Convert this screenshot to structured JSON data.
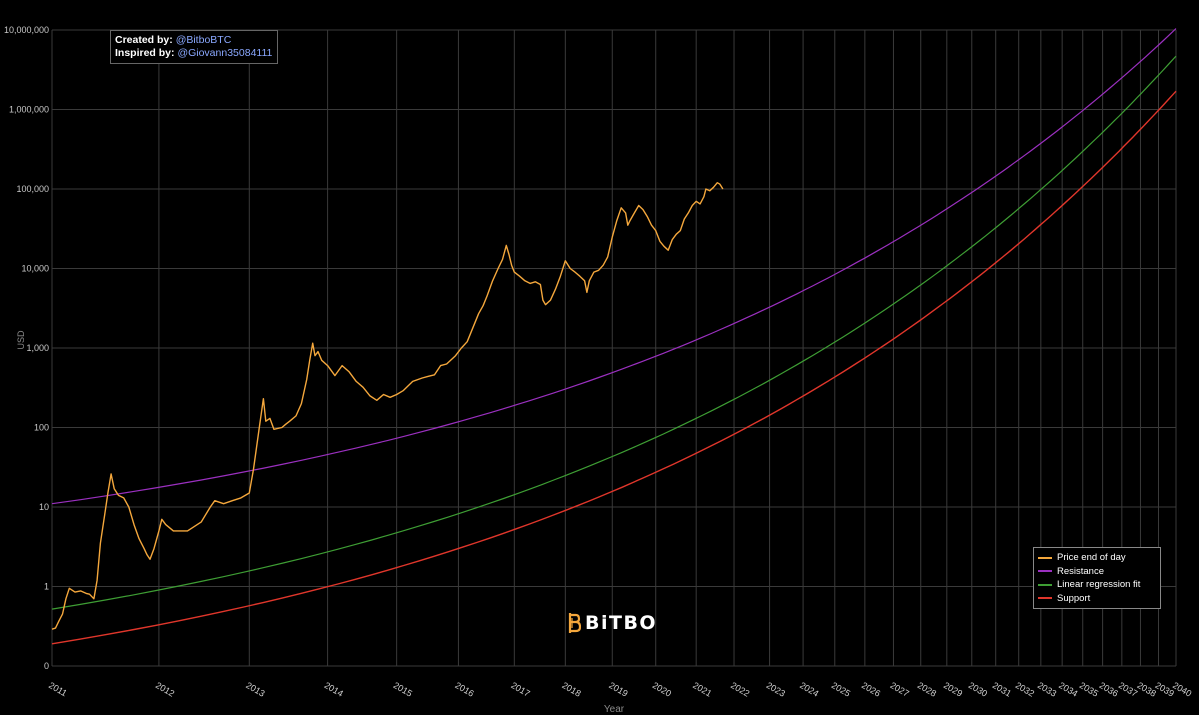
{
  "credits": {
    "created_label": "Created by:",
    "created_handle": "@BitboBTC",
    "inspired_label": "Inspired by:",
    "inspired_handle": "@Giovann35084111"
  },
  "brand": {
    "name": "BiTBO"
  },
  "colors": {
    "background": "#000000",
    "grid": "#3a3a3a",
    "price": "#f4a73c",
    "resistance": "#9b30c0",
    "regression": "#3e9e34",
    "support": "#e0362b",
    "logo": "#f4a73c"
  },
  "chart_data": {
    "type": "line",
    "title": "",
    "xlabel": "Year",
    "ylabel": "USD",
    "yscale": "log",
    "ylim": [
      0.1,
      10000000
    ],
    "xlim": [
      2011.0,
      2040.0
    ],
    "y_ticks": [
      {
        "value": 0.1,
        "label": "0"
      },
      {
        "value": 1,
        "label": "1"
      },
      {
        "value": 10,
        "label": "10"
      },
      {
        "value": 100,
        "label": "100"
      },
      {
        "value": 1000,
        "label": "1,000"
      },
      {
        "value": 10000,
        "label": "10,000"
      },
      {
        "value": 100000,
        "label": "100,000"
      },
      {
        "value": 1000000,
        "label": "1,000,000"
      },
      {
        "value": 10000000,
        "label": "10,000,000"
      }
    ],
    "x_ticks": [
      "2011",
      "2012",
      "2013",
      "2014",
      "2015",
      "2016",
      "2017",
      "2018",
      "2019",
      "2020",
      "2021",
      "2022",
      "2023",
      "2024",
      "2025",
      "2026",
      "2027",
      "2028",
      "2029",
      "2030",
      "2031",
      "2032",
      "2033",
      "2034",
      "2035",
      "2036",
      "2037",
      "2038",
      "2039",
      "2040"
    ],
    "legend": {
      "position": "bottom-right",
      "entries": [
        "Price end of day",
        "Resistance",
        "Linear regression fit",
        "Support"
      ]
    },
    "series": [
      {
        "name": "Price end of day",
        "points": [
          [
            2011.0,
            0.29
          ],
          [
            2011.03,
            0.3
          ],
          [
            2011.06,
            0.37
          ],
          [
            2011.09,
            0.45
          ],
          [
            2011.12,
            0.7
          ],
          [
            2011.15,
            0.95
          ],
          [
            2011.2,
            0.85
          ],
          [
            2011.25,
            0.88
          ],
          [
            2011.3,
            0.82
          ],
          [
            2011.33,
            0.8
          ],
          [
            2011.37,
            0.7
          ],
          [
            2011.4,
            1.2
          ],
          [
            2011.43,
            3.5
          ],
          [
            2011.47,
            8
          ],
          [
            2011.5,
            15
          ],
          [
            2011.53,
            26
          ],
          [
            2011.56,
            17
          ],
          [
            2011.6,
            14
          ],
          [
            2011.65,
            13
          ],
          [
            2011.7,
            10
          ],
          [
            2011.75,
            6
          ],
          [
            2011.8,
            4
          ],
          [
            2011.85,
            3
          ],
          [
            2011.88,
            2.5
          ],
          [
            2011.91,
            2.2
          ],
          [
            2011.95,
            3
          ],
          [
            2012.0,
            5
          ],
          [
            2012.03,
            7
          ],
          [
            2012.07,
            6
          ],
          [
            2012.15,
            5
          ],
          [
            2012.3,
            5
          ],
          [
            2012.45,
            6.5
          ],
          [
            2012.55,
            10
          ],
          [
            2012.6,
            12
          ],
          [
            2012.7,
            11
          ],
          [
            2012.8,
            12
          ],
          [
            2012.9,
            13
          ],
          [
            2013.0,
            15
          ],
          [
            2013.05,
            30
          ],
          [
            2013.12,
            100
          ],
          [
            2013.17,
            230
          ],
          [
            2013.2,
            120
          ],
          [
            2013.25,
            130
          ],
          [
            2013.3,
            95
          ],
          [
            2013.4,
            100
          ],
          [
            2013.45,
            110
          ],
          [
            2013.5,
            120
          ],
          [
            2013.58,
            140
          ],
          [
            2013.65,
            200
          ],
          [
            2013.72,
            400
          ],
          [
            2013.76,
            700
          ],
          [
            2013.8,
            1150
          ],
          [
            2013.83,
            800
          ],
          [
            2013.87,
            900
          ],
          [
            2013.92,
            700
          ],
          [
            2014.0,
            600
          ],
          [
            2014.1,
            450
          ],
          [
            2014.2,
            600
          ],
          [
            2014.3,
            500
          ],
          [
            2014.4,
            380
          ],
          [
            2014.5,
            320
          ],
          [
            2014.6,
            250
          ],
          [
            2014.7,
            220
          ],
          [
            2014.8,
            260
          ],
          [
            2014.9,
            240
          ],
          [
            2015.0,
            260
          ],
          [
            2015.1,
            290
          ],
          [
            2015.25,
            380
          ],
          [
            2015.4,
            420
          ],
          [
            2015.5,
            440
          ],
          [
            2015.6,
            460
          ],
          [
            2015.7,
            600
          ],
          [
            2015.8,
            630
          ],
          [
            2015.95,
            800
          ],
          [
            2016.05,
            1000
          ],
          [
            2016.15,
            1200
          ],
          [
            2016.25,
            1800
          ],
          [
            2016.35,
            2700
          ],
          [
            2016.43,
            3400
          ],
          [
            2016.5,
            4500
          ],
          [
            2016.6,
            7000
          ],
          [
            2016.7,
            10000
          ],
          [
            2016.78,
            13000
          ],
          [
            2016.85,
            19500
          ],
          [
            2016.9,
            15000
          ],
          [
            2016.95,
            11000
          ],
          [
            2017.0,
            9000
          ],
          [
            2017.1,
            8000
          ],
          [
            2017.2,
            7000
          ],
          [
            2017.3,
            6500
          ],
          [
            2017.4,
            6800
          ],
          [
            2017.5,
            6300
          ],
          [
            2017.55,
            4000
          ],
          [
            2017.6,
            3500
          ],
          [
            2017.7,
            4000
          ],
          [
            2017.8,
            5500
          ],
          [
            2017.9,
            8000
          ],
          [
            2018.0,
            12500
          ],
          [
            2018.1,
            10000
          ],
          [
            2018.2,
            9000
          ],
          [
            2018.3,
            8000
          ],
          [
            2018.4,
            7000
          ],
          [
            2018.45,
            5000
          ],
          [
            2018.5,
            7000
          ],
          [
            2018.6,
            9000
          ],
          [
            2018.7,
            9500
          ],
          [
            2018.8,
            11000
          ],
          [
            2018.9,
            14000
          ],
          [
            2019.0,
            25000
          ],
          [
            2019.1,
            40000
          ],
          [
            2019.2,
            58000
          ],
          [
            2019.3,
            50000
          ],
          [
            2019.35,
            35000
          ],
          [
            2019.4,
            40000
          ],
          [
            2019.5,
            50000
          ],
          [
            2019.6,
            62000
          ],
          [
            2019.7,
            55000
          ],
          [
            2019.8,
            45000
          ],
          [
            2019.9,
            35000
          ],
          [
            2020.0,
            30000
          ],
          [
            2020.1,
            22000
          ],
          [
            2020.2,
            19000
          ],
          [
            2020.3,
            17000
          ],
          [
            2020.4,
            23000
          ],
          [
            2020.5,
            27000
          ],
          [
            2020.6,
            30000
          ],
          [
            2020.7,
            42000
          ],
          [
            2020.8,
            50000
          ],
          [
            2020.9,
            62000
          ],
          [
            2021.0,
            70000
          ],
          [
            2021.1,
            65000
          ],
          [
            2021.2,
            80000
          ],
          [
            2021.25,
            100000
          ],
          [
            2021.35,
            95000
          ],
          [
            2021.45,
            105000
          ],
          [
            2021.55,
            120000
          ],
          [
            2021.62,
            115000
          ],
          [
            2021.7,
            100000
          ]
        ]
      },
      {
        "name": "Resistance",
        "points": [
          [
            2011.0,
            11
          ],
          [
            2040.0,
            10400000
          ]
        ]
      },
      {
        "name": "Linear regression fit",
        "points": [
          [
            2011.0,
            0.52
          ],
          [
            2040.0,
            4700000
          ]
        ]
      },
      {
        "name": "Support",
        "points": [
          [
            2011.0,
            0.19
          ],
          [
            2040.0,
            1700000
          ]
        ]
      }
    ]
  }
}
